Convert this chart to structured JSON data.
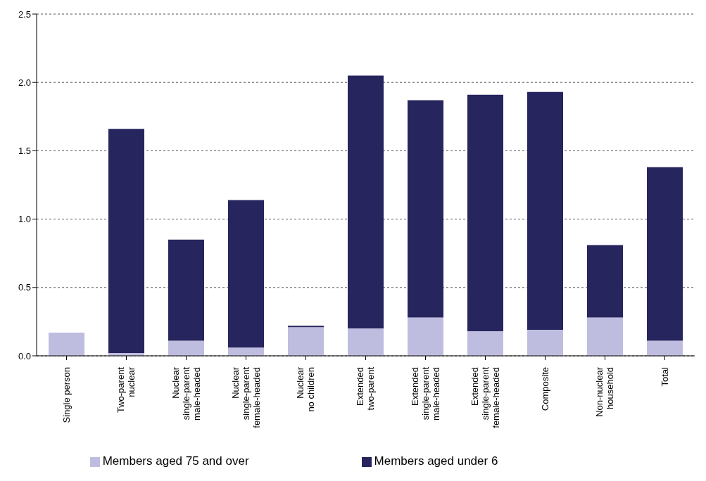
{
  "chart_data": {
    "type": "bar",
    "stacked": true,
    "categories": [
      "Single person",
      "Two-parent\nnuclear",
      "Nuclear\nsingle-parent\nmale-headed",
      "Nuclear\nsingle-parent\nfemale-headed",
      "Nuclear\nno children",
      "Extended\ntwo-parent",
      "Extended\nsingle-parent\nmale-headed",
      "Extended\nsingle-parent\nfemale-headed",
      "Composite",
      "Non-nuclear\nhousehold",
      "Total"
    ],
    "series": [
      {
        "name": "Members aged 75 and over",
        "color": "#bfbddf",
        "values": [
          0.17,
          0.02,
          0.11,
          0.06,
          0.21,
          0.2,
          0.28,
          0.18,
          0.19,
          0.28,
          0.11
        ]
      },
      {
        "name": "Members aged under 6",
        "color": "#27255e",
        "values": [
          0,
          1.64,
          0.74,
          1.08,
          0.01,
          1.85,
          1.59,
          1.73,
          1.74,
          0.53,
          1.27
        ]
      }
    ],
    "ylim": [
      0,
      2.5
    ],
    "yticks": [
      {
        "value": 0,
        "label": "0.0"
      },
      0.5,
      {
        "value": 1,
        "label": "1.0"
      },
      1.5,
      {
        "value": 2,
        "label": "2.0"
      },
      2.5
    ],
    "grid": "y",
    "legend": "bottom"
  }
}
